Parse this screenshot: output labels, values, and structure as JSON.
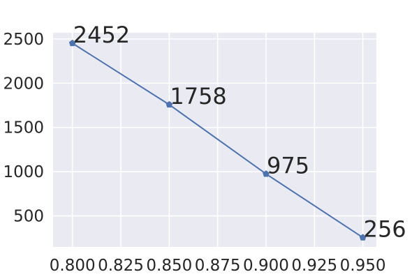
{
  "chart_data": {
    "type": "line",
    "title": "",
    "xlabel": "",
    "ylabel": "",
    "x": [
      0.8,
      0.85,
      0.9,
      0.95
    ],
    "series": [
      {
        "values": [
          2452,
          1758,
          975,
          256
        ],
        "color": "#4c72b0",
        "marker": "pentagon"
      }
    ],
    "data_labels": [
      "2452",
      "1758",
      "975",
      "256"
    ],
    "xlim": [
      0.79,
      0.957
    ],
    "ylim": [
      150,
      2570
    ],
    "x_ticks": [
      0.8,
      0.825,
      0.85,
      0.875,
      0.9,
      0.925,
      0.95
    ],
    "x_tick_labels": [
      "0.800",
      "0.825",
      "0.850",
      "0.875",
      "0.900",
      "0.925",
      "0.950"
    ],
    "y_ticks": [
      500,
      1000,
      1500,
      2000,
      2500
    ],
    "y_tick_labels": [
      "500",
      "1000",
      "1500",
      "2000",
      "2500"
    ],
    "grid": true,
    "legend": false,
    "style": {
      "background": "#eaeaf2",
      "grid_color": "#ffffff",
      "text_color": "#262626"
    }
  }
}
